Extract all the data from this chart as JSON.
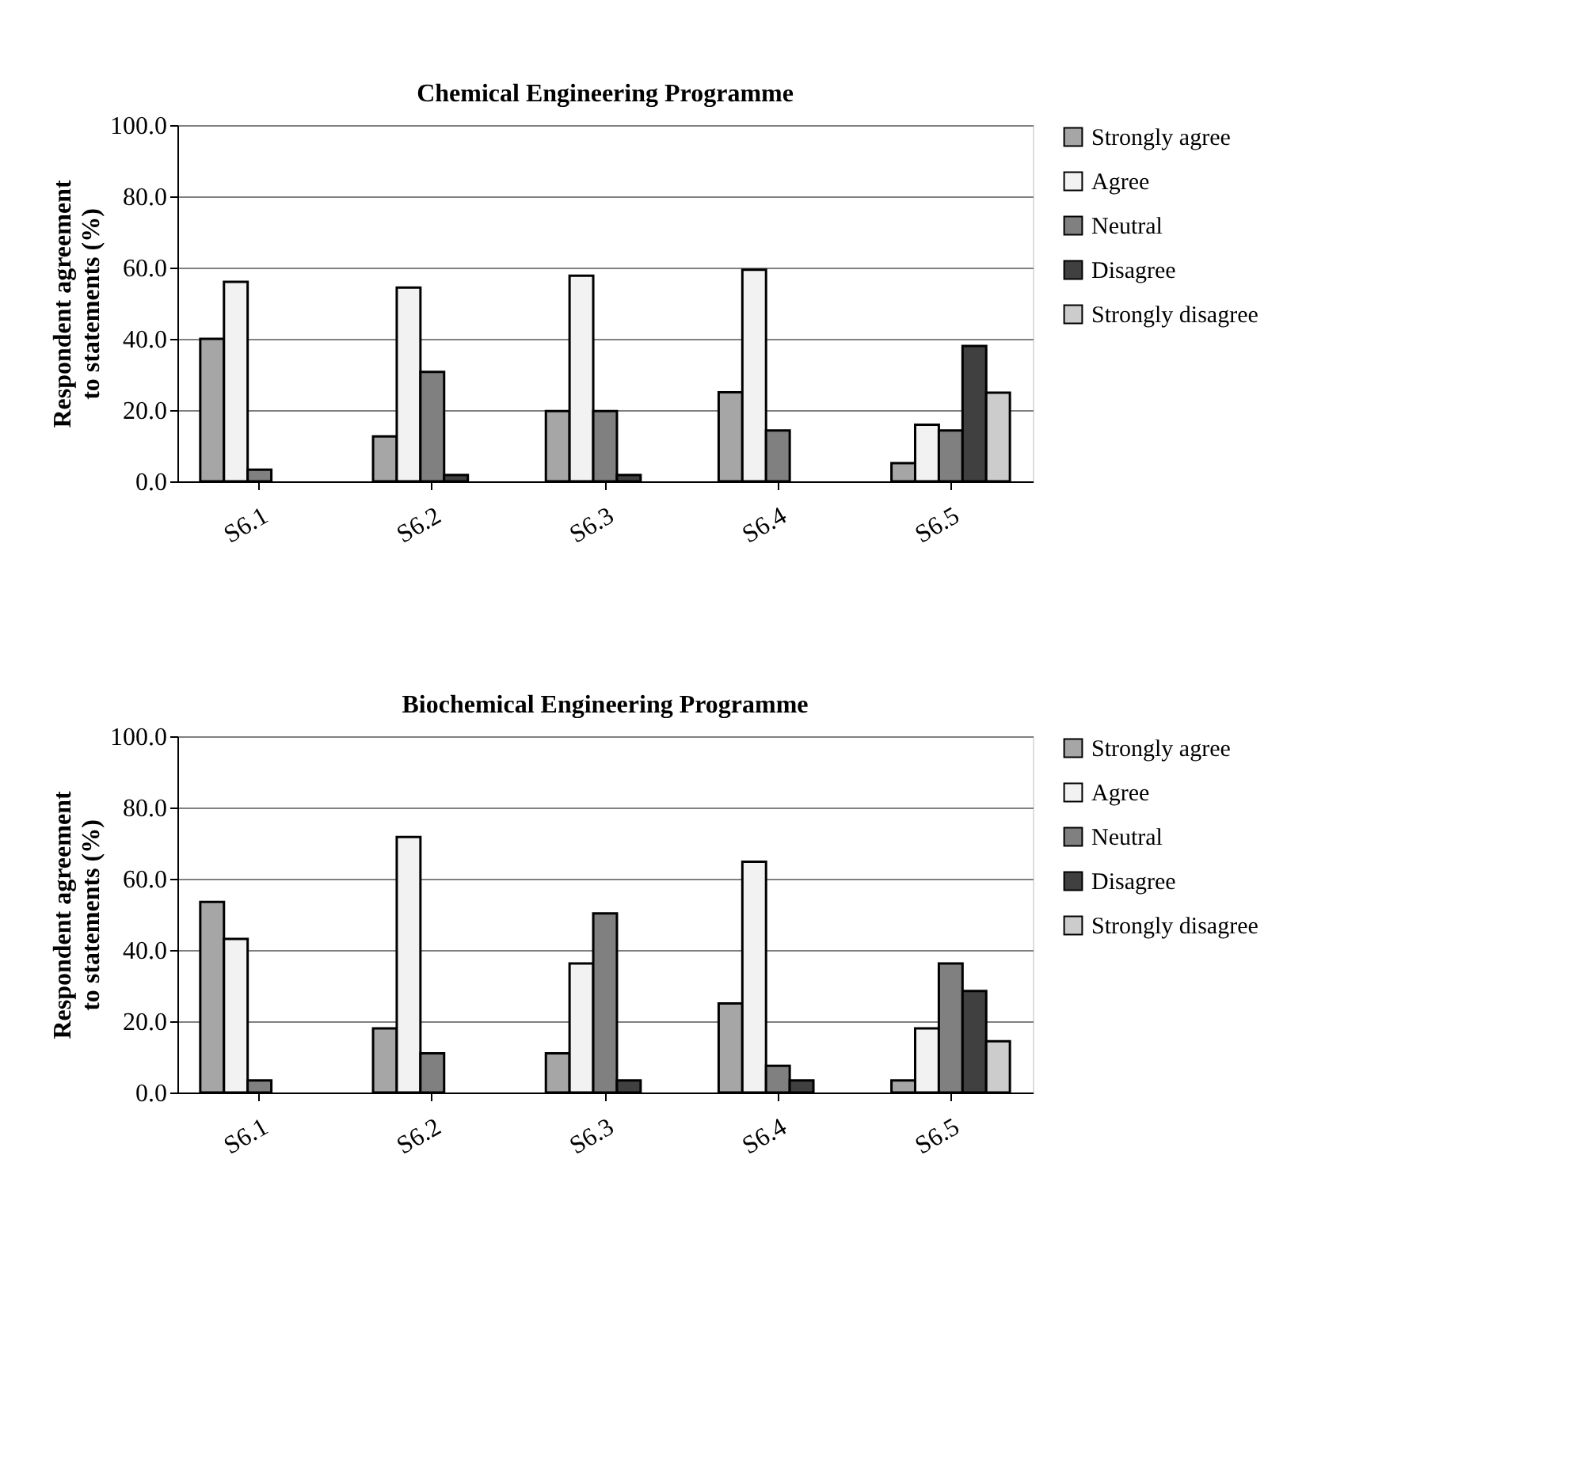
{
  "chart_data": [
    {
      "type": "bar",
      "title": "Chemical Engineering Programme",
      "ylabel": "Respondent agreement to statements  (%)",
      "categories": [
        "S6.1",
        "S6.2",
        "S6.3",
        "S6.4",
        "S6.5"
      ],
      "series": [
        {
          "name": "Strongly agree",
          "color": "#a6a6a6",
          "values": [
            40,
            12.6,
            19.7,
            25,
            5.1
          ]
        },
        {
          "name": "Agree",
          "color": "#f2f2f2",
          "values": [
            56,
            54.4,
            57.7,
            59.4,
            15.9
          ]
        },
        {
          "name": "Neutral",
          "color": "#808080",
          "values": [
            3.3,
            30.7,
            19.7,
            14.3,
            14.3
          ]
        },
        {
          "name": "Disagree",
          "color": "#404040",
          "values": [
            null,
            1.8,
            1.8,
            null,
            38
          ]
        },
        {
          "name": "Strongly disagree",
          "color": "#cccccc",
          "values": [
            null,
            null,
            null,
            null,
            24.9
          ]
        }
      ],
      "ylim": [
        0,
        100
      ],
      "yticks": [
        {
          "value": 0,
          "label": "0.0"
        },
        {
          "value": 20,
          "label": "20.0"
        },
        {
          "value": 40,
          "label": "40.0"
        },
        {
          "value": 60,
          "label": "60.0"
        },
        {
          "value": 80,
          "label": "80.0"
        },
        {
          "value": 100,
          "label": "100.0"
        }
      ],
      "grid": "y",
      "legend": "right"
    },
    {
      "type": "bar",
      "title": "Biochemical Engineering Programme",
      "ylabel": "Respondent agreement to statements  (%)",
      "categories": [
        "S6.1",
        "S6.2",
        "S6.3",
        "S6.4",
        "S6.5"
      ],
      "series": [
        {
          "name": "Strongly agree",
          "color": "#a6a6a6",
          "values": [
            53.5,
            18,
            11,
            25,
            3.4
          ]
        },
        {
          "name": "Agree",
          "color": "#f2f2f2",
          "values": [
            43.1,
            71.7,
            36.2,
            64.8,
            18
          ]
        },
        {
          "name": "Neutral",
          "color": "#808080",
          "values": [
            3.4,
            11,
            50.3,
            7.5,
            36.2
          ]
        },
        {
          "name": "Disagree",
          "color": "#404040",
          "values": [
            null,
            null,
            3.4,
            3.4,
            28.5
          ]
        },
        {
          "name": "Strongly disagree",
          "color": "#cccccc",
          "values": [
            null,
            null,
            null,
            null,
            14.4
          ]
        }
      ],
      "ylim": [
        0,
        100
      ],
      "yticks": [
        {
          "value": 0,
          "label": "0.0"
        },
        {
          "value": 20,
          "label": "20.0"
        },
        {
          "value": 40,
          "label": "40.0"
        },
        {
          "value": 60,
          "label": "60.0"
        },
        {
          "value": 80,
          "label": "80.0"
        },
        {
          "value": 100,
          "label": "100.0"
        }
      ],
      "grid": "y",
      "legend": "right"
    }
  ]
}
